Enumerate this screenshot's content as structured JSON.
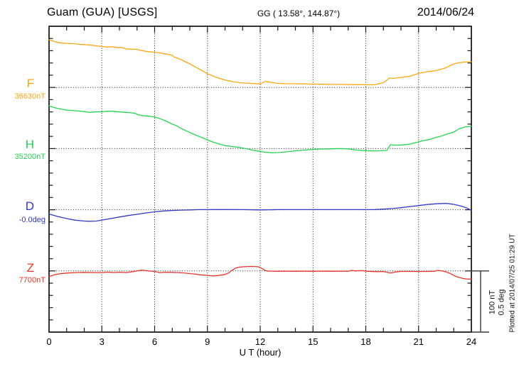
{
  "header": {
    "station": "Guam (GUA)  [USGS]",
    "coords": "GG ( 13.58°, 144.87°)",
    "date": "2014/06/24"
  },
  "scalebar": {
    "line1": "100 nT",
    "line2": "0.5 deg"
  },
  "plotted_at": "Plotted at 2014/07/25 01:29 UT",
  "chart_data": {
    "type": "line",
    "xlabel": "U T (hour)",
    "x_axis": {
      "min": 0,
      "max": 24,
      "major_tick_hours": 3,
      "minor_tick_hours": 1,
      "tick_labels": [
        "0",
        "3",
        "6",
        "9",
        "12",
        "15",
        "18",
        "21",
        "24"
      ]
    },
    "y_axis": {
      "divisions": 5,
      "nT_per_division": 100,
      "deg_per_division": 0.5,
      "gridlines": "dotted horizontal line at each channel baseline, dotted vertical line every 3 hours"
    },
    "series": [
      {
        "name": "F",
        "baseline_label": "36630nT",
        "baseline_value": 36630,
        "unit": "nT",
        "color": "#ffa60f",
        "offsets_are": "offset from baseline_value in nT",
        "hours": [
          0,
          0.3,
          0.6,
          1,
          1.4,
          1.7,
          2,
          2.4,
          2.7,
          3,
          3.3,
          3.6,
          3.9,
          4.1,
          4.4,
          4.7,
          5,
          5.2,
          5.5,
          5.8,
          6,
          6.3,
          6.6,
          7,
          7.1,
          7.5,
          8,
          8.5,
          9,
          9.5,
          10,
          10.5,
          11,
          11.5,
          12,
          12.3,
          12.6,
          13,
          13.5,
          14,
          14.5,
          15,
          15.5,
          16,
          16.5,
          17,
          17.5,
          18,
          18.5,
          19,
          19.35,
          19.6,
          20,
          20.5,
          21,
          21.5,
          22,
          22.5,
          23,
          23.3,
          23.6,
          24
        ],
        "offsets": [
          78,
          75,
          73,
          72,
          71.5,
          70.5,
          70,
          69,
          68,
          67,
          66,
          66.5,
          65,
          65.5,
          63,
          62.5,
          62.3,
          60.5,
          59,
          58,
          57.7,
          56.5,
          55,
          52.5,
          50,
          45.5,
          38.5,
          30.5,
          22.5,
          16.5,
          12,
          9,
          7.2,
          6.6,
          5.7,
          10,
          8.4,
          6.6,
          6,
          6,
          5.7,
          5.5,
          5.2,
          5,
          4.9,
          4.7,
          4.5,
          4.3,
          4.3,
          7.8,
          15.3,
          14.7,
          16.5,
          18.2,
          23,
          25.8,
          27.5,
          31.6,
          38.5,
          40.3,
          41.4,
          42
        ]
      },
      {
        "name": "H",
        "baseline_label": "35200nT",
        "baseline_value": 35200,
        "unit": "nT",
        "color": "#26d353",
        "offsets_are": "offset from baseline_value in nT",
        "hours": [
          0,
          0.3,
          0.6,
          1,
          1.5,
          2,
          2.3,
          2.6,
          3,
          3.3,
          3.6,
          4,
          4.4,
          4.7,
          4.9,
          5.1,
          5.4,
          5.7,
          6,
          6.3,
          6.6,
          7,
          7.2,
          7.5,
          8,
          8.4,
          8.8,
          9.2,
          9.6,
          10,
          10.4,
          10.8,
          11.2,
          11.6,
          12,
          12.3,
          12.7,
          13,
          13.5,
          14,
          14.5,
          15,
          15.5,
          16,
          16.5,
          17,
          17.5,
          18,
          18.4,
          18.8,
          19.2,
          19.4,
          19.7,
          20,
          20.3,
          20.6,
          21,
          21.3,
          21.6,
          22,
          22.3,
          22.6,
          23,
          23.3,
          23.6,
          24
        ],
        "offsets": [
          70,
          67,
          65,
          63,
          62,
          60.5,
          59.3,
          60,
          60.2,
          61,
          61,
          60,
          59.3,
          58.5,
          57.5,
          55,
          53.5,
          53,
          51.5,
          49,
          45.7,
          40,
          38,
          33,
          26.3,
          21.3,
          16.7,
          12,
          8,
          5,
          3.4,
          2,
          -0.1,
          -2.7,
          -4.5,
          -6,
          -7,
          -6.5,
          -5.3,
          -3.6,
          -2.4,
          -1.3,
          -0.7,
          -0.5,
          0,
          -0.5,
          -2.4,
          -3.4,
          -3.8,
          -3.6,
          -3,
          6.3,
          5.7,
          5.9,
          6.5,
          8,
          11,
          13.2,
          14.7,
          18.4,
          20.5,
          23.7,
          27,
          32.4,
          35.3,
          36.4
        ]
      },
      {
        "name": "D",
        "baseline_label": "-0.0deg",
        "baseline_value": -0.0,
        "unit": "deg",
        "color": "#3238c8",
        "offsets_are": "offset from baseline_value in degrees",
        "hours": [
          0,
          0.5,
          1,
          1.5,
          2,
          2.3,
          2.7,
          3,
          3.5,
          4,
          4.5,
          5,
          5.5,
          6,
          6.5,
          7,
          7.5,
          8,
          8.5,
          9,
          9.5,
          10,
          11,
          12,
          12.5,
          13,
          14,
          15,
          16,
          17,
          18,
          18.5,
          19,
          19.5,
          20,
          20.5,
          21,
          21.5,
          22,
          22.3,
          22.6,
          23,
          23.3,
          23.6,
          23.8,
          24
        ],
        "offsets": [
          -0.035,
          -0.055,
          -0.072,
          -0.085,
          -0.092,
          -0.094,
          -0.092,
          -0.084,
          -0.072,
          -0.059,
          -0.047,
          -0.037,
          -0.026,
          -0.017,
          -0.01,
          -0.006,
          -0.003,
          -0.001,
          0.001,
          0.001,
          0.002,
          0.002,
          0.001,
          -0.001,
          0,
          0.001,
          0.001,
          0.001,
          0.001,
          0.001,
          0.001,
          0.002,
          0.005,
          0.01,
          0.017,
          0.026,
          0.034,
          0.043,
          0.049,
          0.051,
          0.052,
          0.044,
          0.035,
          0.022,
          0.009,
          -0.005
        ]
      },
      {
        "name": "Z",
        "baseline_label": "7700nT",
        "baseline_value": 7700,
        "unit": "nT",
        "color": "#e8352b",
        "offsets_are": "offset from baseline_value in nT",
        "hours": [
          0,
          0.3,
          0.6,
          1,
          1.5,
          2,
          2.5,
          3,
          3.3,
          3.7,
          4,
          4.4,
          4.8,
          5.1,
          5.3,
          5.6,
          6,
          6.3,
          6.6,
          7,
          7.4,
          7.8,
          8.2,
          8.6,
          9,
          9.3,
          9.6,
          10,
          10.2,
          10.4,
          10.6,
          10.8,
          11,
          11.3,
          11.6,
          11.9,
          12.1,
          12.3,
          12.5,
          13,
          13.5,
          14,
          14.5,
          15,
          15.5,
          16,
          16.5,
          17,
          17.2,
          17.4,
          17.8,
          18.1,
          18.6,
          19,
          19.4,
          19.7,
          20,
          20.5,
          21,
          21.5,
          21.9,
          22.1,
          22.3,
          22.5,
          22.8,
          23,
          23.2,
          23.5,
          23.7,
          24
        ],
        "offsets": [
          -9.3,
          -6.4,
          -4.6,
          -3.5,
          -2.7,
          -2.3,
          -2.7,
          -2.7,
          -2,
          -2.6,
          -2.1,
          -2.6,
          -1.2,
          0.6,
          1.4,
          0.2,
          -0.9,
          -2.7,
          -2.1,
          -2.3,
          -2.7,
          -3.7,
          -4.9,
          -6.4,
          -7.3,
          -8.1,
          -7.5,
          -5.8,
          -3.5,
          1.2,
          4.6,
          6.2,
          6.7,
          7.2,
          7.3,
          6.7,
          4,
          0.6,
          -0.3,
          -0.6,
          -0.3,
          -0.6,
          -0.3,
          -0.6,
          -0.4,
          -0.6,
          -0.3,
          -0.6,
          0.9,
          0,
          0.6,
          -0.6,
          -1.2,
          -0.9,
          -3.5,
          -1.7,
          -0.8,
          -0.8,
          -0.9,
          -0.8,
          -0.6,
          0.9,
          0.2,
          -1.2,
          -4.1,
          -7.3,
          -9.9,
          -12.2,
          -13.1,
          -13.3
        ]
      }
    ]
  }
}
